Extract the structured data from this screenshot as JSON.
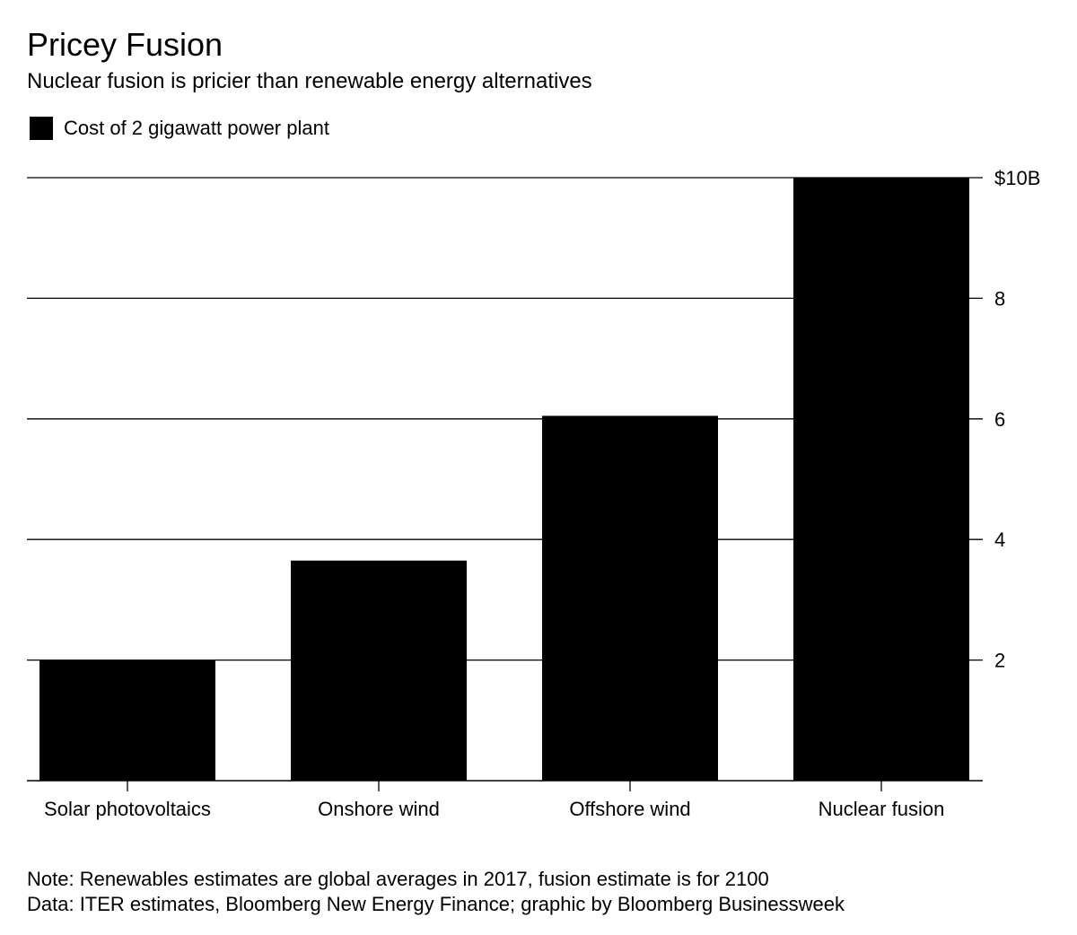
{
  "header": {
    "title": "Pricey Fusion",
    "subtitle": "Nuclear fusion is pricier than renewable energy alternatives"
  },
  "legend": {
    "label": "Cost of 2 gigawatt power plant",
    "color": "#000000"
  },
  "chart_data": {
    "type": "bar",
    "title": "Pricey Fusion",
    "subtitle": "Nuclear fusion is pricier than renewable energy alternatives",
    "categories": [
      "Solar photovoltaics",
      "Onshore wind",
      "Offshore wind",
      "Nuclear fusion"
    ],
    "series": [
      {
        "name": "Cost of 2 gigawatt power plant",
        "values": [
          2.0,
          3.65,
          6.05,
          10.0
        ],
        "color": "#000000"
      }
    ],
    "ylim": [
      0,
      10
    ],
    "yticks": [
      2,
      4,
      6,
      8,
      10
    ],
    "ytick_labels": [
      "2",
      "4",
      "6",
      "8",
      "$10B"
    ],
    "y_axis_position": "right",
    "grid": true,
    "legend_position": "top-left"
  },
  "footer": {
    "note": "Note: Renewables estimates are global averages in 2017, fusion estimate is for 2100",
    "source": "Data: ITER estimates, Bloomberg New Energy Finance; graphic by Bloomberg Businessweek"
  }
}
